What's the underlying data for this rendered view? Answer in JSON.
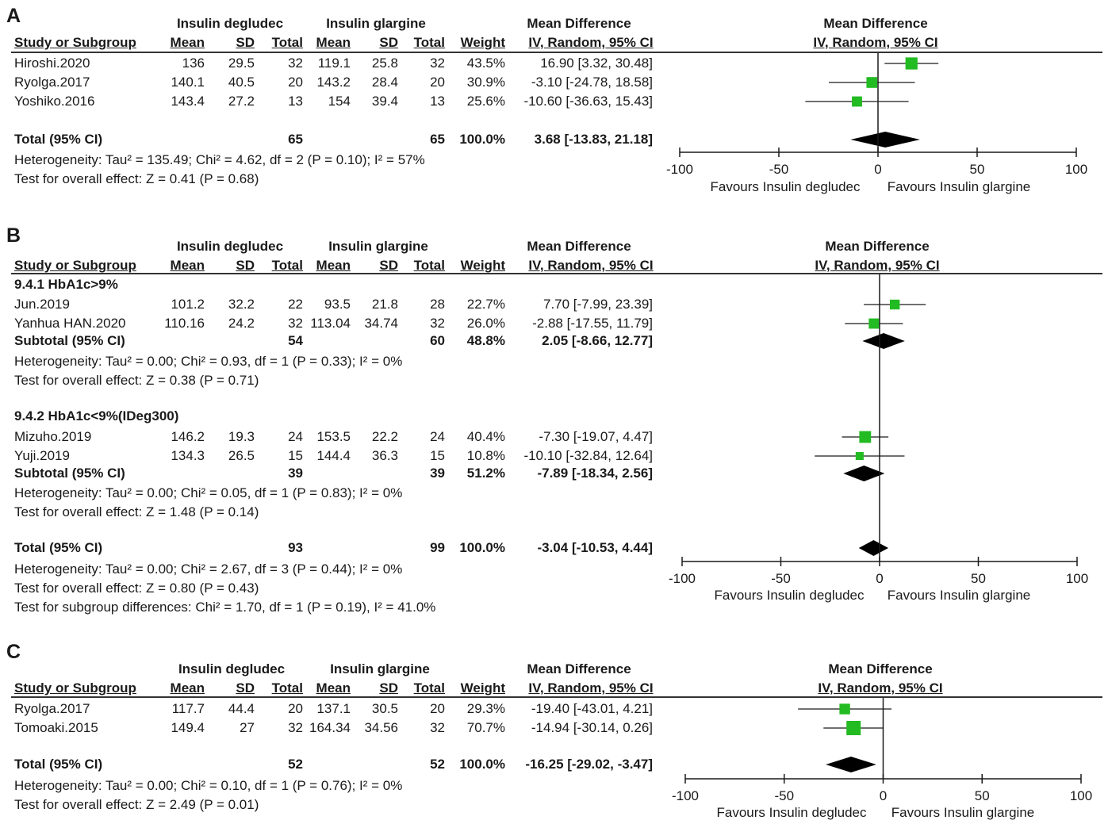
{
  "chart_data": [
    {
      "type": "forest",
      "panel": "A",
      "group1": "Insulin degludec",
      "group2": "Insulin glargine",
      "columns": {
        "study": "Study or Subgroup",
        "mean": "Mean",
        "sd": "SD",
        "total": "Total",
        "weight": "Weight",
        "md_title": "Mean Difference",
        "md_method": "IV, Random, 95% CI"
      },
      "plot_title": "Mean Difference",
      "plot_method": "IV, Random, 95% CI",
      "rows": [
        {
          "kind": "study",
          "label": "Hiroshi.2020",
          "m1": "136",
          "sd1": "29.5",
          "n1": "32",
          "m2": "119.1",
          "sd2": "25.8",
          "n2": "32",
          "weight": "43.5%",
          "ci": "16.90 [3.32, 30.48]",
          "est": 16.9,
          "lo": 3.32,
          "hi": 30.48,
          "w": 43.5
        },
        {
          "kind": "study",
          "label": "Ryolga.2017",
          "m1": "140.1",
          "sd1": "40.5",
          "n1": "20",
          "m2": "143.2",
          "sd2": "28.4",
          "n2": "20",
          "weight": "30.9%",
          "ci": "-3.10 [-24.78, 18.58]",
          "est": -3.1,
          "lo": -24.78,
          "hi": 18.58,
          "w": 30.9
        },
        {
          "kind": "study",
          "label": "Yoshiko.2016",
          "m1": "143.4",
          "sd1": "27.2",
          "n1": "13",
          "m2": "154",
          "sd2": "39.4",
          "n2": "13",
          "weight": "25.6%",
          "ci": "-10.60 [-36.63, 15.43]",
          "est": -10.6,
          "lo": -36.63,
          "hi": 15.43,
          "w": 25.6
        },
        {
          "kind": "total",
          "label": "Total (95% CI)",
          "n1": "65",
          "n2": "65",
          "weight": "100.0%",
          "ci": "3.68 [-13.83, 21.18]",
          "est": 3.68,
          "lo": -13.83,
          "hi": 21.18
        },
        {
          "kind": "note",
          "label": "Heterogeneity: Tau² = 135.49; Chi² = 4.62, df = 2 (P = 0.10); I² = 57%"
        },
        {
          "kind": "note",
          "label": "Test for overall effect: Z = 0.41 (P = 0.68)"
        }
      ],
      "xlim": [
        -100,
        100
      ],
      "ticks": [
        "-100",
        "-50",
        "0",
        "50",
        "100"
      ],
      "favours_left": "Favours Insulin degludec",
      "favours_right": "Favours Insulin glargine"
    },
    {
      "type": "forest",
      "panel": "B",
      "group1": "Insulin degludec",
      "group2": "Insulin glargine",
      "columns": {
        "study": "Study or Subgroup",
        "mean": "Mean",
        "sd": "SD",
        "total": "Total",
        "weight": "Weight",
        "md_title": "Mean Difference",
        "md_method": "IV, Random, 95% CI"
      },
      "plot_title": "Mean Difference",
      "plot_method": "IV, Random, 95% CI",
      "rows": [
        {
          "kind": "heading",
          "label": "9.4.1 HbA1c>9%"
        },
        {
          "kind": "study",
          "label": "Jun.2019",
          "m1": "101.2",
          "sd1": "32.2",
          "n1": "22",
          "m2": "93.5",
          "sd2": "21.8",
          "n2": "28",
          "weight": "22.7%",
          "ci": "7.70 [-7.99, 23.39]",
          "est": 7.7,
          "lo": -7.99,
          "hi": 23.39,
          "w": 22.7
        },
        {
          "kind": "study",
          "label": "Yanhua HAN.2020",
          "m1": "110.16",
          "sd1": "24.2",
          "n1": "32",
          "m2": "113.04",
          "sd2": "34.74",
          "n2": "32",
          "weight": "26.0%",
          "ci": "-2.88 [-17.55, 11.79]",
          "est": -2.88,
          "lo": -17.55,
          "hi": 11.79,
          "w": 26.0
        },
        {
          "kind": "subtotal",
          "label": "Subtotal (95% CI)",
          "n1": "54",
          "n2": "60",
          "weight": "48.8%",
          "ci": "2.05 [-8.66, 12.77]",
          "est": 2.05,
          "lo": -8.66,
          "hi": 12.77
        },
        {
          "kind": "note",
          "label": "Heterogeneity: Tau² = 0.00; Chi² = 0.93, df = 1 (P = 0.33); I² = 0%"
        },
        {
          "kind": "note",
          "label": "Test for overall effect: Z = 0.38 (P = 0.71)"
        },
        {
          "kind": "heading",
          "label": "9.4.2 HbA1c<9%(IDeg300)"
        },
        {
          "kind": "study",
          "label": "Mizuho.2019",
          "m1": "146.2",
          "sd1": "19.3",
          "n1": "24",
          "m2": "153.5",
          "sd2": "22.2",
          "n2": "24",
          "weight": "40.4%",
          "ci": "-7.30 [-19.07, 4.47]",
          "est": -7.3,
          "lo": -19.07,
          "hi": 4.47,
          "w": 40.4
        },
        {
          "kind": "study",
          "label": "Yuji.2019",
          "m1": "134.3",
          "sd1": "26.5",
          "n1": "15",
          "m2": "144.4",
          "sd2": "36.3",
          "n2": "15",
          "weight": "10.8%",
          "ci": "-10.10 [-32.84, 12.64]",
          "est": -10.1,
          "lo": -32.84,
          "hi": 12.64,
          "w": 10.8
        },
        {
          "kind": "subtotal",
          "label": "Subtotal (95% CI)",
          "n1": "39",
          "n2": "39",
          "weight": "51.2%",
          "ci": "-7.89 [-18.34, 2.56]",
          "est": -7.89,
          "lo": -18.34,
          "hi": 2.56
        },
        {
          "kind": "note",
          "label": "Heterogeneity: Tau² = 0.00; Chi² = 0.05, df = 1 (P = 0.83); I² = 0%"
        },
        {
          "kind": "note",
          "label": "Test for overall effect: Z = 1.48 (P = 0.14)"
        },
        {
          "kind": "total",
          "label": "Total (95% CI)",
          "n1": "93",
          "n2": "99",
          "weight": "100.0%",
          "ci": "-3.04 [-10.53, 4.44]",
          "est": -3.04,
          "lo": -10.53,
          "hi": 4.44
        },
        {
          "kind": "note",
          "label": "Heterogeneity: Tau² = 0.00; Chi² = 2.67, df = 3 (P = 0.44); I² = 0%"
        },
        {
          "kind": "note",
          "label": "Test for overall effect: Z = 0.80 (P = 0.43)"
        },
        {
          "kind": "note",
          "label": "Test for subgroup differences: Chi² = 1.70, df = 1 (P = 0.19), I² = 41.0%"
        }
      ],
      "xlim": [
        -100,
        100
      ],
      "ticks": [
        "-100",
        "-50",
        "0",
        "50",
        "100"
      ],
      "favours_left": "Favours Insulin degludec",
      "favours_right": "Favours Insulin glargine"
    },
    {
      "type": "forest",
      "panel": "C",
      "group1": "Insulin degludec",
      "group2": "Insulin glargine",
      "columns": {
        "study": "Study or Subgroup",
        "mean": "Mean",
        "sd": "SD",
        "total": "Total",
        "weight": "Weight",
        "md_title": "Mean Difference",
        "md_method": "IV, Random, 95% CI"
      },
      "plot_title": "Mean Difference",
      "plot_method": "IV, Random, 95% CI",
      "rows": [
        {
          "kind": "study",
          "label": "Ryolga.2017",
          "m1": "117.7",
          "sd1": "44.4",
          "n1": "20",
          "m2": "137.1",
          "sd2": "30.5",
          "n2": "20",
          "weight": "29.3%",
          "ci": "-19.40 [-43.01, 4.21]",
          "est": -19.4,
          "lo": -43.01,
          "hi": 4.21,
          "w": 29.3
        },
        {
          "kind": "study",
          "label": "Tomoaki.2015",
          "m1": "149.4",
          "sd1": "27",
          "n1": "32",
          "m2": "164.34",
          "sd2": "34.56",
          "n2": "32",
          "weight": "70.7%",
          "ci": "-14.94 [-30.14, 0.26]",
          "est": -14.94,
          "lo": -30.14,
          "hi": 0.26,
          "w": 70.7
        },
        {
          "kind": "total",
          "label": "Total (95% CI)",
          "n1": "52",
          "n2": "52",
          "weight": "100.0%",
          "ci": "-16.25 [-29.02, -3.47]",
          "est": -16.25,
          "lo": -29.02,
          "hi": -3.47
        },
        {
          "kind": "note",
          "label": "Heterogeneity: Tau² = 0.00; Chi² = 0.10, df = 1 (P = 0.76); I² = 0%"
        },
        {
          "kind": "note",
          "label": "Test for overall effect: Z = 2.49 (P = 0.01)"
        }
      ],
      "xlim": [
        -100,
        100
      ],
      "ticks": [
        "-100",
        "-50",
        "0",
        "50",
        "100"
      ],
      "favours_left": "Favours Insulin degludec",
      "favours_right": "Favours Insulin glargine"
    }
  ],
  "colors": {
    "marker": "#22bb22",
    "diamond": "#000000",
    "line": "#1a1a1a"
  }
}
